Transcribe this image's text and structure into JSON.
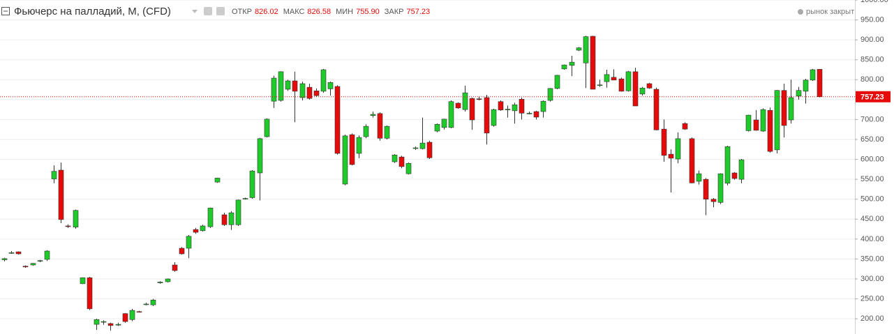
{
  "chart_data": {
    "type": "candlestick",
    "title": "Фьючерс на палладий, M, (CFD)",
    "status": "рынок закрыт",
    "ohlc_names": [
      "ОТКР",
      "МАКС",
      "МИН",
      "ЗАКР"
    ],
    "ohlc_value_labels": [
      "826.02",
      "826.58",
      "755.90",
      "757.23"
    ],
    "colors": {
      "up": "#1ecb2a",
      "down": "#e50b0b",
      "last_price": "#e50b0b"
    },
    "open": [
      348,
      366,
      368,
      332,
      335,
      345,
      349,
      551,
      573,
      433,
      430,
      288,
      303,
      186,
      192,
      188,
      184,
      213,
      198,
      218,
      236,
      235,
      290,
      293,
      335,
      377,
      377,
      424,
      421,
      431,
      543,
      461,
      436,
      436,
      501,
      504,
      566,
      657,
      746,
      748,
      776,
      797,
      755,
      781,
      772,
      771,
      777,
      783,
      538,
      662,
      615,
      657,
      710,
      715,
      653,
      594,
      606,
      564,
      628,
      627,
      643,
      671,
      680,
      680,
      741,
      725,
      753,
      752,
      755,
      685,
      745,
      725,
      722,
      751,
      715,
      720,
      720,
      748,
      778,
      827,
      836,
      874,
      842,
      909,
      787,
      795,
      806,
      802,
      772,
      820,
      764,
      790,
      776,
      676,
      613,
      601,
      690,
      652,
      545,
      550,
      500,
      492,
      540,
      566,
      550,
      672,
      699,
      671,
      723,
      624,
      773,
      699,
      759,
      771,
      799,
      826.02
    ],
    "high": [
      353,
      370,
      369,
      334,
      340,
      348,
      372,
      585,
      592,
      437,
      474,
      304,
      305,
      200,
      196,
      190,
      190,
      214,
      225,
      220,
      240,
      250,
      294,
      301,
      342,
      380,
      410,
      428,
      436,
      479,
      554,
      466,
      470,
      499,
      504,
      573,
      654,
      703,
      810,
      821,
      800,
      820,
      795,
      790,
      778,
      827,
      795,
      786,
      662,
      665,
      660,
      688,
      720,
      718,
      685,
      613,
      609,
      592,
      632,
      705,
      647,
      690,
      702,
      748,
      743,
      785,
      755,
      757,
      762,
      727,
      748,
      735,
      742,
      755,
      720,
      722,
      748,
      779,
      812,
      838,
      860,
      882,
      910,
      910,
      800,
      825,
      826,
      805,
      822,
      830,
      782,
      792,
      780,
      700,
      625,
      668,
      693,
      655,
      572,
      553,
      503,
      565,
      634,
      568,
      601,
      712,
      724,
      728,
      730,
      774,
      790,
      800,
      782,
      802,
      827,
      826.58
    ],
    "low": [
      344,
      363,
      361,
      328,
      333,
      342,
      345,
      540,
      440,
      428,
      426,
      287,
      222,
      172,
      185,
      170,
      182,
      190,
      194,
      216,
      234,
      232,
      288,
      291,
      318,
      361,
      352,
      413,
      419,
      428,
      541,
      433,
      423,
      433,
      499,
      501,
      497,
      655,
      729,
      745,
      772,
      693,
      748,
      750,
      757,
      767,
      760,
      612,
      535,
      585,
      603,
      653,
      705,
      647,
      650,
      591,
      578,
      562,
      624,
      625,
      601,
      668,
      675,
      678,
      727,
      720,
      674,
      748,
      637,
      682,
      722,
      705,
      690,
      700,
      713,
      700,
      705,
      745,
      776,
      825,
      809,
      872,
      779,
      776,
      782,
      780,
      800,
      770,
      770,
      734,
      760,
      777,
      673,
      594,
      517,
      590,
      674,
      540,
      537,
      460,
      480,
      488,
      535,
      549,
      540,
      670,
      672,
      669,
      617,
      615,
      655,
      690,
      750,
      740,
      797,
      755.9
    ],
    "close": [
      351,
      366,
      363,
      330,
      339,
      346,
      370,
      570,
      449,
      432,
      472,
      303,
      225,
      198,
      193,
      183,
      186,
      193,
      221,
      217,
      237,
      247,
      292,
      300,
      321,
      363,
      407,
      417,
      433,
      478,
      553,
      436,
      466,
      498,
      502,
      571,
      652,
      701,
      804,
      820,
      797,
      771,
      790,
      753,
      760,
      825,
      793,
      615,
      659,
      587,
      655,
      683,
      713,
      653,
      683,
      611,
      582,
      590,
      629,
      641,
      604,
      688,
      701,
      745,
      729,
      767,
      699,
      751,
      666,
      725,
      724,
      726,
      737,
      716,
      716,
      706,
      746,
      778,
      811,
      837,
      844,
      880,
      908,
      776,
      787,
      813,
      799,
      771,
      820,
      734,
      779,
      779,
      674,
      610,
      603,
      652,
      676,
      541,
      564,
      500,
      494,
      564,
      632,
      552,
      599,
      711,
      673,
      725,
      620,
      773,
      685,
      755,
      773,
      799,
      825,
      757.23
    ],
    "ylim": [
      161.75,
      1000
    ],
    "yticks": [
      {
        "value": 200,
        "label": "200.00"
      },
      {
        "value": 250,
        "label": "250.00"
      },
      {
        "value": 300,
        "label": "300.00"
      },
      {
        "value": 350,
        "label": "350.00"
      },
      {
        "value": 400,
        "label": "400.00"
      },
      {
        "value": 450,
        "label": "450.00"
      },
      {
        "value": 500,
        "label": "500.00"
      },
      {
        "value": 550,
        "label": "550.00"
      },
      {
        "value": 600,
        "label": "600.00"
      },
      {
        "value": 650,
        "label": "650.00"
      },
      {
        "value": 700,
        "label": "700.00"
      },
      {
        "value": 750,
        "label": "750.00"
      },
      {
        "value": 800,
        "label": "800.00"
      },
      {
        "value": 850,
        "label": "850.00"
      },
      {
        "value": 900,
        "label": "900.00"
      },
      {
        "value": 950,
        "label": "950.00"
      },
      {
        "value": 1000,
        "label": "1000.00"
      }
    ],
    "grid": true
  }
}
